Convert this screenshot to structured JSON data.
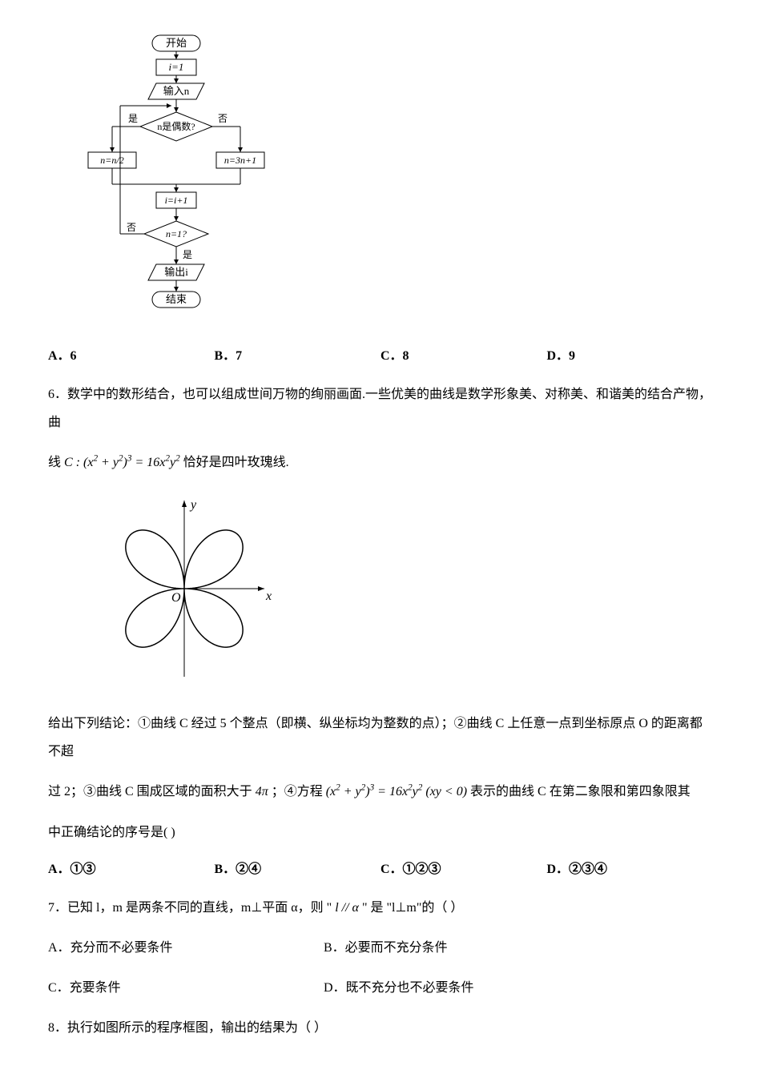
{
  "flowchart": {
    "start": "开始",
    "init": "i=1",
    "input": "输入n",
    "cond1": "n是偶数?",
    "cond1_yes": "是",
    "cond1_no": "否",
    "left_box": "n=n/2",
    "right_box": "n=3n+1",
    "inc": "i=i+1",
    "cond2": "n=1?",
    "cond2_yes": "是",
    "cond2_no": "否",
    "output": "输出i",
    "end": "结束",
    "stroke": "#000000",
    "fill": "#ffffff",
    "font_size": 13
  },
  "q5_answers": {
    "A": "A．6",
    "B": "B．7",
    "C": "C．8",
    "D": "D．9"
  },
  "q6": {
    "intro": "6．数学中的数形结合，也可以组成世间万物的绚丽画面.一些优美的曲线是数学形象美、对称美、和谐美的结合产物，曲",
    "formula_prefix": "线",
    "formula": "C : (x² + y²)³ = 16x²y²",
    "formula_suffix": "恰好是四叶玫瑰线.",
    "body_p1": "给出下列结论：①曲线 C 经过 5 个整点（即横、纵坐标均为整数的点）；②曲线 C 上任意一点到坐标原点 O 的距离都不超",
    "body_p2_prefix": "过 2；③曲线 C 围成区域的面积大于",
    "body_4pi": "4π",
    "body_p2_mid": "；④方程",
    "formula2": "(x² + y²)³ = 16x²y² (xy < 0)",
    "body_p2_suffix": "表示的曲线 C 在第二象限和第四象限其",
    "body_p3": "中正确结论的序号是(    )",
    "answers": {
      "A": "A．①③",
      "B": "B．②④",
      "C": "C．①②③",
      "D": "D．②③④"
    }
  },
  "rose": {
    "axis_x_label": "x",
    "axis_y_label": "y",
    "origin_label": "O",
    "stroke": "#000000",
    "font_style": "italic",
    "font_family": "Times New Roman"
  },
  "q7": {
    "text_prefix": "7．已知 l，m 是两条不同的直线，m⊥平面 α，则 \"",
    "cond": "l // α",
    "text_suffix": "\" 是 \"l⊥m\"的（    ）",
    "answers": {
      "A": "A．充分而不必要条件",
      "B": "B．必要而不充分条件",
      "C": "C．充要条件",
      "D": "D．既不充分也不必要条件"
    }
  },
  "q8": {
    "text": "8．执行如图所示的程序框图，输出的结果为（    ）"
  }
}
